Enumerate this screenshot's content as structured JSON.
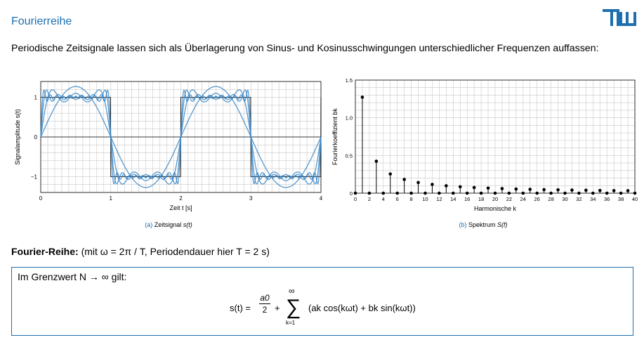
{
  "page": {
    "title": "Fourierreihe",
    "intro": "Periodische Zeitsignale lassen sich als Überlagerung von Sinus- und Kosinusschwingungen unterschiedlicher Frequenzen auffassen:"
  },
  "captions": {
    "a_label": "(a)",
    "a_text": "Zeitsignal",
    "a_fn": "s(t)",
    "b_label": "(b)",
    "b_text": "Spektrum",
    "b_fn": "S(f)"
  },
  "fourier": {
    "heading": "Fourier-Reihe:",
    "note": "(mit ω = 2π / T, Periodendauer hier T = 2 s)",
    "limit": "Im Grenzwert N → ∞ gilt:",
    "lhs": "s(t) =",
    "a0": "a0",
    "den": "2",
    "plus": "+",
    "sum_top": "∞",
    "sum_bottom": "k=1",
    "sum_body": "(ak cos(kωt) + bk sin(kωt))"
  },
  "colors": {
    "accent": "#1c6fb0",
    "series": "#3a86c6"
  },
  "chart_data": [
    {
      "type": "line",
      "xlabel": "Zeit t [s]",
      "ylabel": "Signalamplitude s(t)",
      "xlim": [
        0,
        4
      ],
      "ylim": [
        -1.4,
        1.4
      ],
      "xticks": [
        "0",
        "1",
        "2",
        "3",
        "4"
      ],
      "yticks": [
        {
          "value": 1,
          "label": "1"
        },
        {
          "value": 0,
          "label": "0"
        },
        {
          "value": -1,
          "label": "−1"
        }
      ],
      "grid": true,
      "series": [
        {
          "kind": "square",
          "harmonics": 0,
          "color": "#000000"
        },
        {
          "kind": "partial-sum",
          "harmonics": 1,
          "color": "#3a86c6"
        },
        {
          "kind": "partial-sum",
          "harmonics": 5,
          "color": "#3a86c6"
        },
        {
          "kind": "partial-sum",
          "harmonics": 11,
          "color": "#3a86c6"
        },
        {
          "kind": "partial-sum",
          "harmonics": 21,
          "color": "#3a86c6"
        }
      ]
    },
    {
      "type": "stem",
      "xlabel": "Harmonische k",
      "ylabel": "Fourierkoeffizient bk",
      "xlim": [
        0,
        40
      ],
      "ylim": [
        0,
        1.5
      ],
      "xticks": [
        "0",
        "2",
        "4",
        "6",
        "8",
        "10",
        "12",
        "14",
        "16",
        "18",
        "20",
        "22",
        "24",
        "26",
        "28",
        "30",
        "32",
        "34",
        "36",
        "38",
        "40"
      ],
      "yticks": [
        {
          "value": 1.5,
          "label": "1.5"
        },
        {
          "value": 1.0,
          "label": "1.0"
        },
        {
          "value": 0.5,
          "label": "0.5"
        },
        {
          "value": 0,
          "label": "0"
        }
      ],
      "grid": true,
      "k": [
        0,
        1,
        2,
        3,
        4,
        5,
        6,
        7,
        8,
        9,
        10,
        11,
        12,
        13,
        14,
        15,
        16,
        17,
        18,
        19,
        20,
        21,
        22,
        23,
        24,
        25,
        26,
        27,
        28,
        29,
        30,
        31,
        32,
        33,
        34,
        35,
        36,
        37,
        38,
        39,
        40
      ],
      "values": [
        0,
        1.273,
        0,
        0.424,
        0,
        0.255,
        0,
        0.182,
        0,
        0.141,
        0,
        0.116,
        0,
        0.098,
        0,
        0.085,
        0,
        0.075,
        0,
        0.067,
        0,
        0.061,
        0,
        0.055,
        0,
        0.051,
        0,
        0.047,
        0,
        0.044,
        0,
        0.041,
        0,
        0.039,
        0,
        0.036,
        0,
        0.034,
        0,
        0.033,
        0
      ]
    }
  ]
}
